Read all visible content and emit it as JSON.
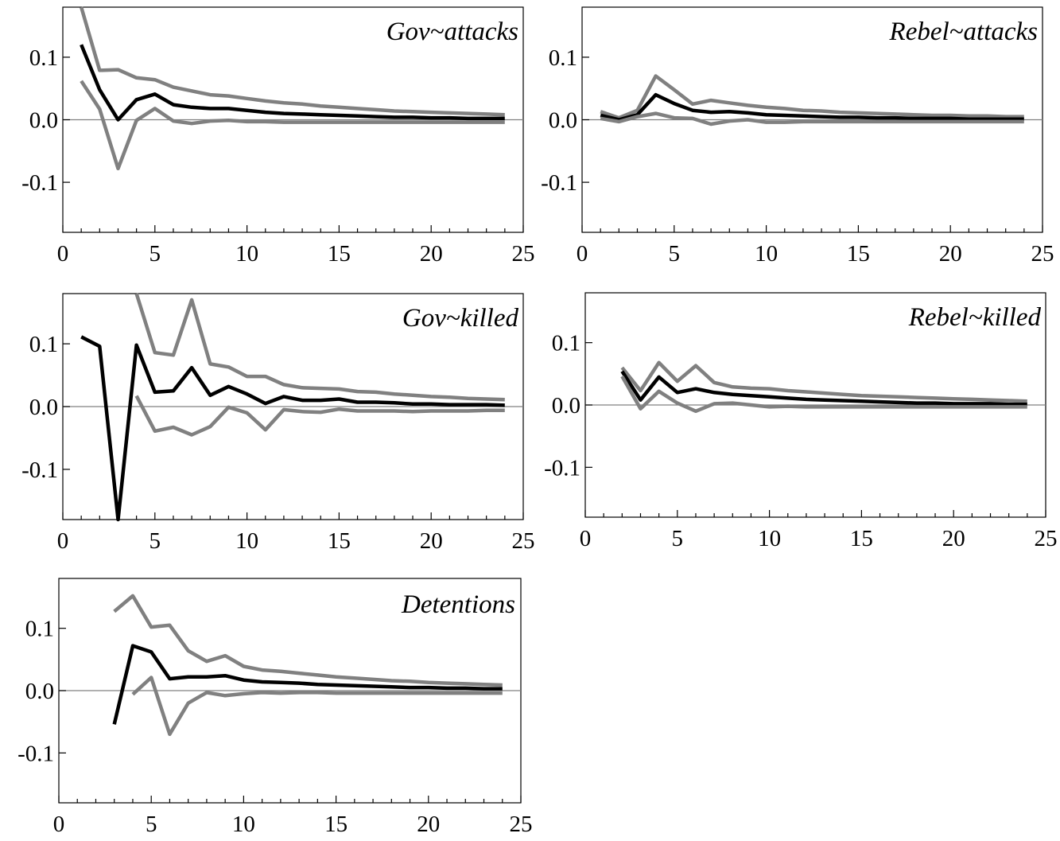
{
  "colors": {
    "estimate": "#000000",
    "band": "#808080",
    "frame": "#000000",
    "zero_line": "#808080"
  },
  "chart_data": [
    {
      "type": "line",
      "title": "Gov~attacks",
      "xlim": [
        0,
        25
      ],
      "ylim": [
        -0.18,
        0.18
      ],
      "x_ticks": [
        0,
        5,
        10,
        15,
        20,
        25
      ],
      "x_tick_labels": [
        "0",
        "5",
        "10",
        "15",
        "20",
        "25"
      ],
      "y_ticks": [
        0.1,
        0.0,
        -0.1
      ],
      "y_tick_labels": [
        "0.1",
        "0.0",
        "-0.1"
      ],
      "zero_line": true,
      "series": [
        {
          "role": "upper",
          "color": "#808080",
          "x": [
            1,
            2,
            3,
            4,
            5,
            6,
            7,
            8,
            9,
            10,
            11,
            12,
            13,
            14,
            15,
            16,
            17,
            18,
            19,
            20,
            21,
            22,
            23,
            24
          ],
          "y": [
            0.18,
            0.079,
            0.08,
            0.067,
            0.064,
            0.052,
            0.046,
            0.04,
            0.038,
            0.034,
            0.03,
            0.027,
            0.025,
            0.022,
            0.02,
            0.018,
            0.016,
            0.014,
            0.013,
            0.012,
            0.011,
            0.01,
            0.009,
            0.008
          ]
        },
        {
          "role": "estimate",
          "color": "#000000",
          "x": [
            1,
            2,
            3,
            4,
            5,
            6,
            7,
            8,
            9,
            10,
            11,
            12,
            13,
            14,
            15,
            16,
            17,
            18,
            19,
            20,
            21,
            22,
            23,
            24
          ],
          "y": [
            0.12,
            0.048,
            0.0,
            0.032,
            0.041,
            0.024,
            0.02,
            0.018,
            0.018,
            0.015,
            0.012,
            0.01,
            0.009,
            0.008,
            0.007,
            0.006,
            0.005,
            0.004,
            0.004,
            0.003,
            0.003,
            0.002,
            0.002,
            0.002
          ]
        },
        {
          "role": "lower",
          "color": "#808080",
          "x": [
            1,
            2,
            3,
            4,
            5,
            6,
            7,
            8,
            9,
            10,
            11,
            12,
            13,
            14,
            15,
            16,
            17,
            18,
            19,
            20,
            21,
            22,
            23,
            24
          ],
          "y": [
            0.062,
            0.017,
            -0.078,
            -0.001,
            0.018,
            -0.002,
            -0.006,
            -0.002,
            -0.001,
            -0.003,
            -0.003,
            -0.004,
            -0.004,
            -0.004,
            -0.004,
            -0.004,
            -0.004,
            -0.004,
            -0.004,
            -0.004,
            -0.004,
            -0.004,
            -0.004,
            -0.004
          ]
        }
      ]
    },
    {
      "type": "line",
      "title": "Rebel~attacks",
      "xlim": [
        0,
        25
      ],
      "ylim": [
        -0.18,
        0.18
      ],
      "x_ticks": [
        0,
        5,
        10,
        15,
        20,
        25
      ],
      "x_tick_labels": [
        "0",
        "5",
        "10",
        "15",
        "20",
        "25"
      ],
      "y_ticks": [
        0.1,
        0.0,
        -0.1
      ],
      "y_tick_labels": [
        "0.1",
        "0.0",
        "-0.1"
      ],
      "zero_line": true,
      "series": [
        {
          "role": "upper",
          "color": "#808080",
          "x": [
            1,
            2,
            3,
            4,
            5,
            6,
            7,
            8,
            9,
            10,
            11,
            12,
            13,
            14,
            15,
            16,
            17,
            18,
            19,
            20,
            21,
            22,
            23,
            24
          ],
          "y": [
            0.013,
            0.003,
            0.015,
            0.07,
            0.048,
            0.025,
            0.031,
            0.027,
            0.023,
            0.02,
            0.018,
            0.015,
            0.014,
            0.012,
            0.011,
            0.01,
            0.009,
            0.008,
            0.007,
            0.007,
            0.006,
            0.006,
            0.005,
            0.005
          ]
        },
        {
          "role": "estimate",
          "color": "#000000",
          "x": [
            1,
            2,
            3,
            4,
            5,
            6,
            7,
            8,
            9,
            10,
            11,
            12,
            13,
            14,
            15,
            16,
            17,
            18,
            19,
            20,
            21,
            22,
            23,
            24
          ],
          "y": [
            0.007,
            0.0,
            0.008,
            0.04,
            0.026,
            0.015,
            0.012,
            0.013,
            0.011,
            0.008,
            0.007,
            0.006,
            0.005,
            0.004,
            0.004,
            0.003,
            0.003,
            0.002,
            0.002,
            0.002,
            0.001,
            0.001,
            0.001,
            0.001
          ]
        },
        {
          "role": "lower",
          "color": "#808080",
          "x": [
            1,
            2,
            3,
            4,
            5,
            6,
            7,
            8,
            9,
            10,
            11,
            12,
            13,
            14,
            15,
            16,
            17,
            18,
            19,
            20,
            21,
            22,
            23,
            24
          ],
          "y": [
            0.002,
            -0.003,
            0.005,
            0.01,
            0.003,
            0.002,
            -0.007,
            -0.002,
            0.0,
            -0.004,
            -0.004,
            -0.003,
            -0.003,
            -0.003,
            -0.003,
            -0.003,
            -0.003,
            -0.003,
            -0.003,
            -0.003,
            -0.003,
            -0.003,
            -0.003,
            -0.003
          ]
        }
      ]
    },
    {
      "type": "line",
      "title": "Gov~killed",
      "xlim": [
        0,
        25
      ],
      "ylim": [
        -0.18,
        0.18
      ],
      "x_ticks": [
        0,
        5,
        10,
        15,
        20,
        25
      ],
      "x_tick_labels": [
        "0",
        "5",
        "10",
        "15",
        "20",
        "25"
      ],
      "y_ticks": [
        0.1,
        0.0,
        -0.1
      ],
      "y_tick_labels": [
        "0.1",
        "0.0",
        "-0.1"
      ],
      "zero_line": true,
      "series": [
        {
          "role": "upper",
          "color": "#808080",
          "x": [
            4,
            5,
            6,
            7,
            8,
            9,
            10,
            11,
            12,
            13,
            14,
            15,
            16,
            17,
            18,
            19,
            20,
            21,
            22,
            23,
            24
          ],
          "y": [
            0.18,
            0.086,
            0.082,
            0.17,
            0.068,
            0.063,
            0.048,
            0.048,
            0.035,
            0.03,
            0.029,
            0.028,
            0.024,
            0.023,
            0.02,
            0.018,
            0.016,
            0.015,
            0.013,
            0.012,
            0.011
          ]
        },
        {
          "role": "estimate",
          "color": "#000000",
          "x": [
            1,
            2,
            3,
            4,
            5,
            6,
            7,
            8,
            9,
            10,
            11,
            12,
            13,
            14,
            15,
            16,
            17,
            18,
            19,
            20,
            21,
            22,
            23,
            24
          ],
          "y": [
            0.111,
            0.096,
            -0.18,
            0.098,
            0.023,
            0.025,
            0.062,
            0.018,
            0.032,
            0.02,
            0.005,
            0.016,
            0.01,
            0.01,
            0.012,
            0.007,
            0.007,
            0.006,
            0.004,
            0.004,
            0.003,
            0.003,
            0.003,
            0.002
          ]
        },
        {
          "role": "lower",
          "color": "#808080",
          "x": [
            4,
            5,
            6,
            7,
            8,
            9,
            10,
            11,
            12,
            13,
            14,
            15,
            16,
            17,
            18,
            19,
            20,
            21,
            22,
            23,
            24
          ],
          "y": [
            0.017,
            -0.039,
            -0.033,
            -0.045,
            -0.032,
            -0.001,
            -0.01,
            -0.037,
            -0.005,
            -0.008,
            -0.009,
            -0.004,
            -0.007,
            -0.007,
            -0.007,
            -0.008,
            -0.007,
            -0.007,
            -0.007,
            -0.006,
            -0.006
          ]
        }
      ]
    },
    {
      "type": "line",
      "title": "Rebel~killed",
      "xlim": [
        0,
        25
      ],
      "ylim": [
        -0.18,
        0.18
      ],
      "x_ticks": [
        0,
        5,
        10,
        15,
        20,
        25
      ],
      "x_tick_labels": [
        "0",
        "5",
        "10",
        "15",
        "20",
        "25"
      ],
      "y_ticks": [
        0.1,
        0.0,
        -0.1
      ],
      "y_tick_labels": [
        "0.1",
        "0.0",
        "-0.1"
      ],
      "zero_line": true,
      "series": [
        {
          "role": "upper",
          "color": "#808080",
          "x": [
            2,
            3,
            4,
            5,
            6,
            7,
            8,
            9,
            10,
            11,
            12,
            13,
            14,
            15,
            16,
            17,
            18,
            19,
            20,
            21,
            22,
            23,
            24
          ],
          "y": [
            0.06,
            0.023,
            0.068,
            0.038,
            0.063,
            0.036,
            0.029,
            0.027,
            0.026,
            0.023,
            0.021,
            0.019,
            0.017,
            0.015,
            0.014,
            0.013,
            0.012,
            0.011,
            0.01,
            0.009,
            0.008,
            0.007,
            0.006
          ]
        },
        {
          "role": "estimate",
          "color": "#000000",
          "x": [
            2,
            3,
            4,
            5,
            6,
            7,
            8,
            9,
            10,
            11,
            12,
            13,
            14,
            15,
            16,
            17,
            18,
            19,
            20,
            21,
            22,
            23,
            24
          ],
          "y": [
            0.054,
            0.008,
            0.045,
            0.02,
            0.026,
            0.02,
            0.017,
            0.015,
            0.013,
            0.011,
            0.009,
            0.008,
            0.007,
            0.006,
            0.005,
            0.004,
            0.003,
            0.003,
            0.002,
            0.002,
            0.002,
            0.001,
            0.001
          ]
        },
        {
          "role": "lower",
          "color": "#808080",
          "x": [
            2,
            3,
            4,
            5,
            6,
            7,
            8,
            9,
            10,
            11,
            12,
            13,
            14,
            15,
            16,
            17,
            18,
            19,
            20,
            21,
            22,
            23,
            24
          ],
          "y": [
            0.046,
            -0.006,
            0.022,
            0.003,
            -0.01,
            0.002,
            0.003,
            0.0,
            -0.003,
            -0.002,
            -0.003,
            -0.003,
            -0.003,
            -0.003,
            -0.003,
            -0.003,
            -0.003,
            -0.003,
            -0.003,
            -0.003,
            -0.003,
            -0.003,
            -0.003
          ]
        }
      ]
    },
    {
      "type": "line",
      "title": "Detentions",
      "xlim": [
        0,
        25
      ],
      "ylim": [
        -0.18,
        0.18
      ],
      "x_ticks": [
        0,
        5,
        10,
        15,
        20,
        25
      ],
      "x_tick_labels": [
        "0",
        "5",
        "10",
        "15",
        "20",
        "25"
      ],
      "y_ticks": [
        0.1,
        0.0,
        -0.1
      ],
      "y_tick_labels": [
        "0.1",
        "0.0",
        "-0.1"
      ],
      "zero_line": true,
      "series": [
        {
          "role": "upper",
          "color": "#808080",
          "x": [
            3,
            4,
            5,
            6,
            7,
            8,
            9,
            10,
            11,
            12,
            13,
            14,
            15,
            16,
            17,
            18,
            19,
            20,
            21,
            22,
            23,
            24
          ],
          "y": [
            0.127,
            0.152,
            0.102,
            0.105,
            0.064,
            0.047,
            0.056,
            0.039,
            0.033,
            0.031,
            0.028,
            0.025,
            0.022,
            0.02,
            0.018,
            0.016,
            0.015,
            0.013,
            0.012,
            0.011,
            0.01,
            0.009
          ]
        },
        {
          "role": "estimate",
          "color": "#000000",
          "x": [
            3,
            4,
            5,
            6,
            7,
            8,
            9,
            10,
            11,
            12,
            13,
            14,
            15,
            16,
            17,
            18,
            19,
            20,
            21,
            22,
            23,
            24
          ],
          "y": [
            -0.054,
            0.072,
            0.062,
            0.019,
            0.022,
            0.022,
            0.024,
            0.017,
            0.014,
            0.013,
            0.012,
            0.01,
            0.009,
            0.008,
            0.007,
            0.006,
            0.005,
            0.005,
            0.004,
            0.004,
            0.003,
            0.003
          ]
        },
        {
          "role": "lower",
          "color": "#808080",
          "x": [
            4,
            5,
            6,
            7,
            8,
            9,
            10,
            11,
            12,
            13,
            14,
            15,
            16,
            17,
            18,
            19,
            20,
            21,
            22,
            23,
            24
          ],
          "y": [
            -0.006,
            0.021,
            -0.07,
            -0.02,
            -0.003,
            -0.008,
            -0.005,
            -0.003,
            -0.004,
            -0.003,
            -0.003,
            -0.004,
            -0.004,
            -0.004,
            -0.004,
            -0.004,
            -0.004,
            -0.004,
            -0.004,
            -0.004,
            -0.004
          ]
        }
      ]
    }
  ]
}
